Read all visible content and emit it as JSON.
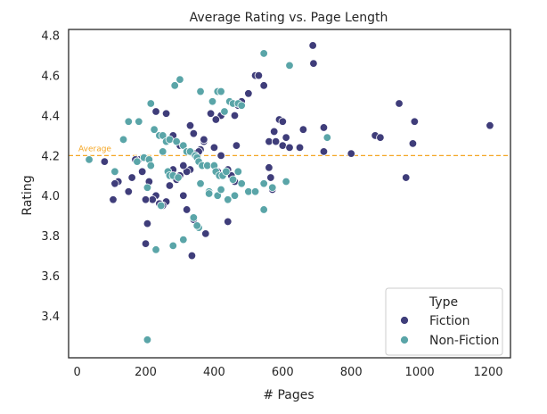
{
  "chart_data": {
    "type": "scatter",
    "title": "Average Rating vs. Page Length",
    "xlabel": "# Pages",
    "ylabel": "Rating",
    "xlim": [
      -25,
      1265
    ],
    "ylim": [
      3.19,
      4.83
    ],
    "xticks": [
      0,
      200,
      400,
      600,
      800,
      1000,
      1200
    ],
    "yticks": [
      3.4,
      3.6,
      3.8,
      4.0,
      4.2,
      4.4,
      4.6,
      4.8
    ],
    "xtick_labels": [
      "0",
      "200",
      "400",
      "600",
      "800",
      "1000",
      "1200"
    ],
    "ytick_labels": [
      "3.4",
      "3.6",
      "3.8",
      "4.0",
      "4.2",
      "4.4",
      "4.6",
      "4.8"
    ],
    "grid": false,
    "reference_line": {
      "label": "Average",
      "y": 4.2,
      "color": "#f5a623",
      "style": "dashed"
    },
    "legend": {
      "title": "Type",
      "placement": "lower-right"
    },
    "series": [
      {
        "name": "Fiction",
        "color": "#3f3d7a",
        "x": [
          688,
          690,
          520,
          530,
          500,
          545,
          575,
          560,
          590,
          600,
          660,
          610,
          650,
          600,
          580,
          620,
          720,
          800,
          870,
          885,
          940,
          960,
          980,
          985,
          1205,
          470,
          480,
          460,
          420,
          405,
          390,
          370,
          360,
          350,
          340,
          330,
          320,
          310,
          300,
          290,
          280,
          270,
          260,
          250,
          240,
          230,
          220,
          210,
          200,
          190,
          180,
          170,
          160,
          150,
          120,
          110,
          105,
          80,
          370,
          355,
          330,
          340,
          230,
          260,
          280,
          300,
          310,
          320,
          400,
          410,
          420,
          440,
          450,
          460,
          465,
          560,
          565,
          570,
          720,
          205,
          200,
          335,
          440,
          375,
          340
        ],
        "y": [
          4.75,
          4.66,
          4.6,
          4.6,
          4.51,
          4.55,
          4.32,
          4.27,
          4.38,
          4.37,
          4.33,
          4.29,
          4.24,
          4.25,
          4.27,
          4.24,
          4.34,
          4.21,
          4.3,
          4.29,
          4.46,
          4.09,
          4.26,
          4.37,
          4.35,
          4.45,
          4.47,
          4.4,
          4.4,
          4.38,
          4.41,
          4.27,
          4.23,
          4.19,
          4.21,
          4.13,
          4.12,
          4.15,
          4.1,
          4.08,
          4.13,
          4.05,
          3.97,
          3.95,
          3.96,
          4.0,
          3.98,
          4.07,
          3.98,
          4.12,
          4.18,
          4.18,
          4.09,
          4.02,
          4.07,
          4.06,
          3.98,
          4.17,
          4.28,
          4.22,
          4.35,
          4.31,
          4.42,
          4.41,
          4.3,
          4.25,
          4.0,
          3.93,
          4.24,
          4.12,
          4.2,
          4.13,
          4.1,
          4.07,
          4.25,
          4.14,
          4.09,
          4.03,
          4.22,
          3.86,
          3.76,
          3.7,
          3.87,
          3.81,
          3.88
        ]
      },
      {
        "name": "Non-Fiction",
        "color": "#5aa5a8",
        "x": [
          545,
          620,
          300,
          285,
          360,
          410,
          420,
          395,
          445,
          455,
          470,
          480,
          430,
          150,
          180,
          215,
          225,
          240,
          250,
          260,
          270,
          290,
          310,
          320,
          330,
          345,
          350,
          355,
          365,
          380,
          400,
          405,
          415,
          425,
          435,
          455,
          470,
          480,
          500,
          520,
          545,
          570,
          610,
          730,
          35,
          110,
          135,
          175,
          195,
          210,
          215,
          250,
          265,
          270,
          280,
          295,
          360,
          385,
          410,
          420,
          440,
          460,
          545,
          205,
          355,
          340,
          310,
          230,
          350,
          385,
          205,
          280,
          245
        ],
        "y": [
          4.71,
          4.65,
          4.58,
          4.55,
          4.52,
          4.52,
          4.52,
          4.47,
          4.47,
          4.46,
          4.46,
          4.45,
          4.42,
          4.37,
          4.37,
          4.46,
          4.33,
          4.3,
          4.3,
          4.27,
          4.28,
          4.27,
          4.25,
          4.22,
          4.22,
          4.2,
          4.19,
          4.17,
          4.15,
          4.15,
          4.15,
          4.12,
          4.1,
          4.1,
          4.12,
          4.08,
          4.12,
          4.06,
          4.02,
          4.02,
          4.06,
          4.04,
          4.07,
          4.29,
          4.18,
          4.12,
          4.28,
          4.17,
          4.19,
          4.18,
          4.15,
          4.22,
          4.12,
          4.1,
          4.1,
          4.09,
          4.06,
          4.02,
          4.0,
          4.03,
          3.98,
          4.0,
          3.93,
          4.04,
          3.84,
          3.89,
          3.78,
          3.73,
          3.85,
          4.01,
          3.28,
          3.75,
          3.95
        ]
      }
    ]
  }
}
